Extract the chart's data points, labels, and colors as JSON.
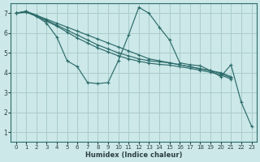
{
  "xlabel": "Humidex (Indice chaleur)",
  "bg_color": "#cce8e8",
  "grid_color": "#aacccc",
  "line_color": "#2d6b6b",
  "xlim": [
    -0.5,
    23.5
  ],
  "ylim": [
    0.5,
    7.5
  ],
  "xticks": [
    0,
    1,
    2,
    3,
    4,
    5,
    6,
    7,
    8,
    9,
    10,
    11,
    12,
    13,
    14,
    15,
    16,
    17,
    18,
    19,
    20,
    21,
    22,
    23
  ],
  "yticks": [
    1,
    2,
    3,
    4,
    5,
    6,
    7
  ],
  "series": [
    {
      "x": [
        0,
        1,
        2,
        3,
        4,
        5,
        6,
        7,
        8,
        9,
        10,
        11,
        12,
        13,
        14,
        15,
        16,
        17,
        18,
        19,
        20,
        21,
        22,
        23
      ],
      "y": [
        7.0,
        7.1,
        6.85,
        6.5,
        5.8,
        4.6,
        4.3,
        3.5,
        3.45,
        3.5,
        4.6,
        5.9,
        7.3,
        7.0,
        6.3,
        5.65,
        4.5,
        4.4,
        4.35,
        4.1,
        3.8,
        4.4,
        2.5,
        1.3
      ]
    },
    {
      "x": [
        0,
        1,
        2,
        3,
        4,
        5,
        6,
        7,
        8,
        9,
        10,
        11,
        12,
        13,
        14,
        15,
        16,
        17,
        18,
        19,
        20,
        21
      ],
      "y": [
        7.0,
        7.1,
        6.9,
        6.7,
        6.5,
        6.3,
        6.1,
        5.9,
        5.7,
        5.5,
        5.3,
        5.1,
        4.9,
        4.7,
        4.6,
        4.5,
        4.4,
        4.3,
        4.2,
        4.1,
        4.0,
        3.8
      ]
    },
    {
      "x": [
        0,
        1,
        2,
        3,
        4,
        5,
        6,
        7,
        8,
        9,
        10,
        11,
        12,
        13,
        14,
        15,
        16,
        17,
        18,
        19,
        20,
        21
      ],
      "y": [
        7.0,
        7.1,
        6.9,
        6.65,
        6.4,
        6.15,
        5.9,
        5.65,
        5.4,
        5.2,
        5.0,
        4.85,
        4.7,
        4.6,
        4.55,
        4.5,
        4.4,
        4.3,
        4.2,
        4.1,
        3.95,
        3.75
      ]
    },
    {
      "x": [
        0,
        1,
        2,
        3,
        4,
        5,
        6,
        7,
        8,
        9,
        10,
        11,
        12,
        13,
        14,
        15,
        16,
        17,
        18,
        19,
        20,
        21
      ],
      "y": [
        7.0,
        7.05,
        6.85,
        6.6,
        6.35,
        6.05,
        5.75,
        5.5,
        5.25,
        5.05,
        4.85,
        4.7,
        4.58,
        4.48,
        4.42,
        4.38,
        4.3,
        4.22,
        4.12,
        4.02,
        3.88,
        3.68
      ]
    }
  ]
}
